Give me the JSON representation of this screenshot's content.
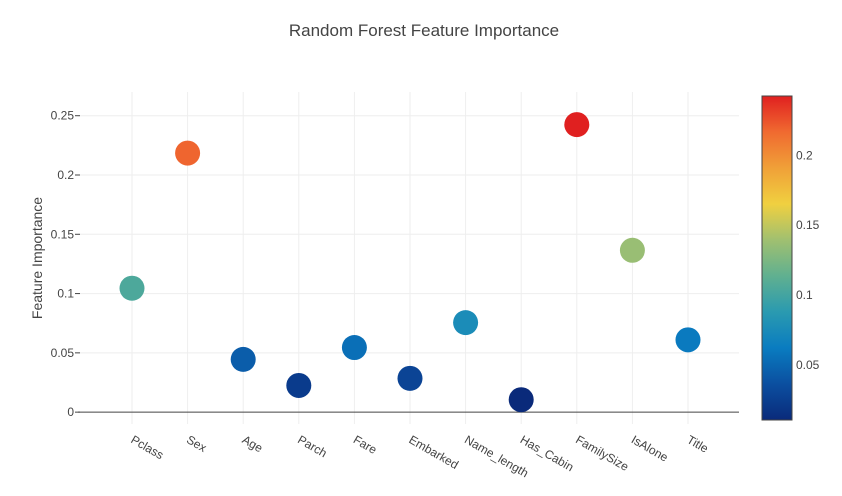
{
  "chart_data": {
    "type": "scatter",
    "title": "Random Forest Feature Importance",
    "xlabel": "",
    "ylabel": "Feature Importance",
    "categories": [
      "Pclass",
      "Sex",
      "Age",
      "Parch",
      "Fare",
      "Embarked",
      "Name_length",
      "Has_Cabin",
      "FamilySize",
      "IsAlone",
      "Title"
    ],
    "values": [
      0.1045,
      0.2185,
      0.0445,
      0.0225,
      0.0545,
      0.0285,
      0.0755,
      0.0105,
      0.2425,
      0.1365,
      0.061
    ],
    "ylim": [
      -0.01,
      0.27
    ],
    "yticks": [
      0,
      0.05,
      0.1,
      0.15,
      0.2,
      0.25
    ],
    "ytick_labels": [
      "0",
      "0.05",
      "0.1",
      "0.15",
      "0.2",
      "0.25"
    ],
    "grid": true,
    "colorbar": {
      "range": [
        0.0105,
        0.2425
      ],
      "ticks": [
        0.05,
        0.1,
        0.15,
        0.2
      ],
      "tick_labels": [
        "0.05",
        "0.1",
        "0.15",
        "0.2"
      ],
      "colorscale": [
        "#0a2a7a",
        "#0b4fa0",
        "#0a7cc0",
        "#2a9ab0",
        "#60b090",
        "#a0c070",
        "#f0d040",
        "#f0a038",
        "#f06a30",
        "#e02020"
      ]
    }
  }
}
